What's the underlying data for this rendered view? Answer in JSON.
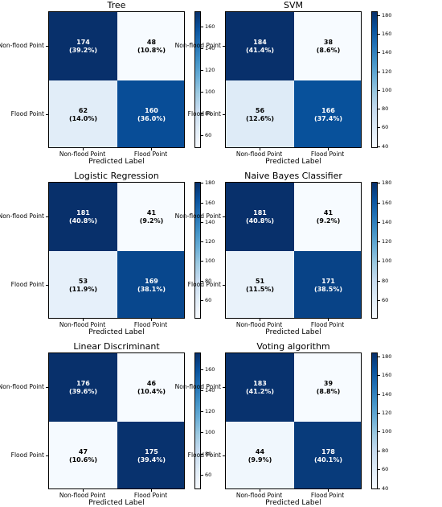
{
  "chart_data": [
    {
      "type": "heatmap",
      "title": "Tree",
      "xlabel": "Predicted Label",
      "row_labels": [
        "Non-flood Point",
        "Flood Point"
      ],
      "col_labels": [
        "Non-flood Point",
        "Flood Point"
      ],
      "values": [
        [
          174,
          48
        ],
        [
          62,
          160
        ]
      ],
      "percent_labels": [
        [
          "(39.2%)",
          "(10.8%)"
        ],
        [
          "(14.0%)",
          "(36.0%)"
        ]
      ],
      "colorbar_ticks": [
        60,
        80,
        100,
        120,
        140,
        160
      ],
      "colorbar_range": [
        48,
        174
      ]
    },
    {
      "type": "heatmap",
      "title": "SVM",
      "xlabel": "Predicted Label",
      "row_labels": [
        "Non-flood Point",
        "Flood Point"
      ],
      "col_labels": [
        "Non-flood Point",
        "Flood Point"
      ],
      "values": [
        [
          184,
          38
        ],
        [
          56,
          166
        ]
      ],
      "percent_labels": [
        [
          "(41.4%)",
          "(8.6%)"
        ],
        [
          "(12.6%)",
          "(37.4%)"
        ]
      ],
      "colorbar_ticks": [
        40,
        60,
        80,
        100,
        120,
        140,
        160,
        180
      ],
      "colorbar_range": [
        38,
        184
      ]
    },
    {
      "type": "heatmap",
      "title": "Logistic Regression",
      "xlabel": "Predicted Label",
      "row_labels": [
        "Non-flood Point",
        "Flood Point"
      ],
      "col_labels": [
        "Non-flood Point",
        "Flood Point"
      ],
      "values": [
        [
          181,
          41
        ],
        [
          53,
          169
        ]
      ],
      "percent_labels": [
        [
          "(40.8%)",
          "(9.2%)"
        ],
        [
          "(11.9%)",
          "(38.1%)"
        ]
      ],
      "colorbar_ticks": [
        60,
        80,
        100,
        120,
        140,
        160,
        180
      ],
      "colorbar_range": [
        41,
        181
      ]
    },
    {
      "type": "heatmap",
      "title": "Naive Bayes Classifier",
      "xlabel": "Predicted Label",
      "row_labels": [
        "Non-flood Point",
        "Flood Point"
      ],
      "col_labels": [
        "Non-flood Point",
        "Flood Point"
      ],
      "values": [
        [
          181,
          41
        ],
        [
          51,
          171
        ]
      ],
      "percent_labels": [
        [
          "(40.8%)",
          "(9.2%)"
        ],
        [
          "(11.5%)",
          "(38.5%)"
        ]
      ],
      "colorbar_ticks": [
        60,
        80,
        100,
        120,
        140,
        160,
        180
      ],
      "colorbar_range": [
        41,
        181
      ]
    },
    {
      "type": "heatmap",
      "title": "Linear Discriminant",
      "xlabel": "Predicted Label",
      "row_labels": [
        "Non-flood Point",
        "Flood Point"
      ],
      "col_labels": [
        "Non-flood Point",
        "Flood Point"
      ],
      "values": [
        [
          176,
          46
        ],
        [
          47,
          175
        ]
      ],
      "percent_labels": [
        [
          "(39.6%)",
          "(10.4%)"
        ],
        [
          "(10.6%)",
          "(39.4%)"
        ]
      ],
      "colorbar_ticks": [
        60,
        80,
        100,
        120,
        140,
        160
      ],
      "colorbar_range": [
        46,
        176
      ]
    },
    {
      "type": "heatmap",
      "title": "Voting algorithm",
      "xlabel": "Predicted Label",
      "row_labels": [
        "Non-flood Point",
        "Flood Point"
      ],
      "col_labels": [
        "Non-flood Point",
        "Flood Point"
      ],
      "values": [
        [
          183,
          39
        ],
        [
          44,
          178
        ]
      ],
      "percent_labels": [
        [
          "(41.2%)",
          "(8.8%)"
        ],
        [
          "(9.9%)",
          "(40.1%)"
        ]
      ],
      "colorbar_ticks": [
        40,
        60,
        80,
        100,
        120,
        140,
        160,
        180
      ],
      "colorbar_range": [
        39,
        184
      ]
    }
  ]
}
